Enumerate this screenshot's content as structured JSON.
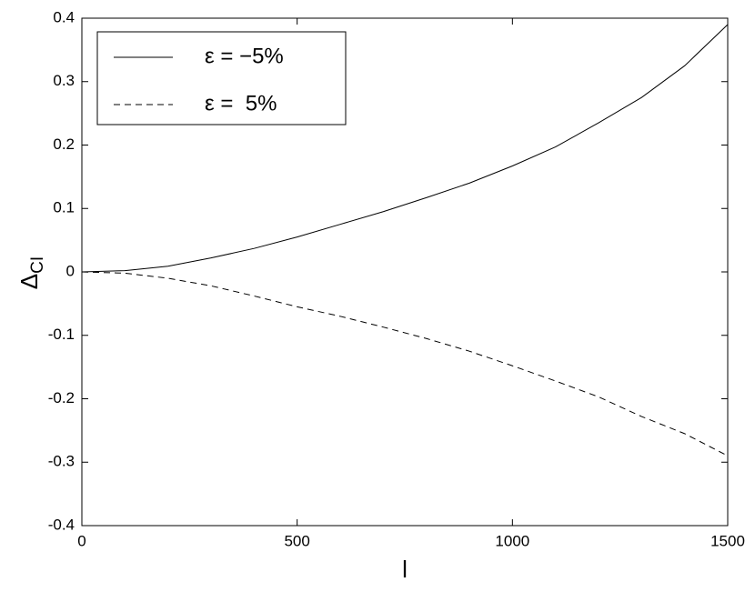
{
  "chart_data": {
    "type": "line",
    "xlabel": "l",
    "ylabel": {
      "symbol": "Δ",
      "subscript": "CI"
    },
    "x": [
      0,
      100,
      200,
      300,
      400,
      500,
      600,
      700,
      800,
      900,
      1000,
      1100,
      1200,
      1300,
      1400,
      1500
    ],
    "series": [
      {
        "name": "ε = −5%",
        "color": "#000000",
        "dash": "solid",
        "values": [
          0,
          0.002,
          0.009,
          0.022,
          0.037,
          0.055,
          0.075,
          0.095,
          0.117,
          0.14,
          0.167,
          0.197,
          0.235,
          0.275,
          0.325,
          0.39
        ]
      },
      {
        "name": "ε =  5%",
        "color": "#000000",
        "dash": "dashed",
        "values": [
          0,
          -0.002,
          -0.01,
          -0.022,
          -0.038,
          -0.055,
          -0.07,
          -0.087,
          -0.105,
          -0.125,
          -0.148,
          -0.172,
          -0.197,
          -0.228,
          -0.255,
          -0.29
        ]
      }
    ],
    "xlim": [
      0,
      1500
    ],
    "xticks": [
      0,
      500,
      1000,
      1500
    ],
    "ylim": [
      -0.4,
      0.4
    ],
    "yticks": [
      -0.4,
      -0.3,
      -0.2,
      -0.1,
      0,
      0.1,
      0.2,
      0.3,
      0.4
    ],
    "grid": false,
    "legend": "upper left"
  }
}
